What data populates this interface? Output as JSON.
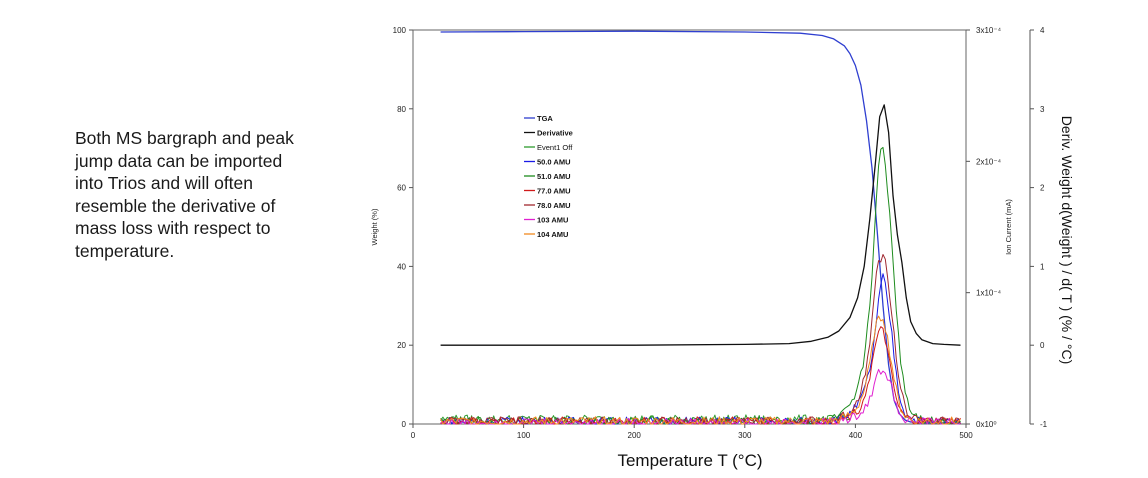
{
  "caption": {
    "lines": [
      "Both MS bargraph and peak",
      "jump data can be imported",
      "into Trios and will often",
      "resemble the derivative of",
      "mass loss with respect to",
      "temperature."
    ]
  },
  "chart_data": {
    "type": "line",
    "xlabel": "Temperature T (°C)",
    "xlim": [
      0,
      500
    ],
    "x_ticks": [
      "0",
      "100",
      "200",
      "300",
      "400",
      "500"
    ],
    "y_left": {
      "label": "Weight (%)",
      "lim": [
        0,
        100
      ],
      "ticks": [
        "0",
        "20",
        "40",
        "60",
        "80",
        "100"
      ]
    },
    "y_mid": {
      "label": "Ion Current (mA)",
      "lim": [
        0,
        0.0003
      ],
      "ticks": [
        "0x10⁰",
        "1x10⁻⁴",
        "2x10⁻⁴",
        "3x10⁻⁴"
      ]
    },
    "y_right": {
      "label": "Deriv. Weight d(Weight ) / d( T )  (% / °C)",
      "lim": [
        -1,
        4
      ],
      "ticks": [
        "-1",
        "0",
        "1",
        "2",
        "3",
        "4"
      ]
    },
    "legend_position": "upper-left inside plot",
    "series": [
      {
        "name": "TGA",
        "color": "#2f3fd0",
        "axis": "left",
        "x": [
          25,
          100,
          200,
          300,
          350,
          370,
          380,
          390,
          395,
          400,
          405,
          410,
          415,
          420,
          425,
          430,
          435,
          440,
          445,
          450,
          460,
          470,
          480,
          495
        ],
        "y": [
          99.5,
          99.6,
          99.7,
          99.5,
          99.2,
          98.6,
          97.8,
          96.0,
          94.0,
          91.0,
          86.0,
          77.0,
          65.0,
          48.0,
          30.0,
          15.0,
          6.0,
          2.5,
          1.0,
          0.5,
          0.3,
          0.3,
          0.3,
          0.3
        ]
      },
      {
        "name": "Derivative",
        "color": "#111111",
        "axis": "right",
        "x": [
          25,
          100,
          200,
          300,
          340,
          360,
          375,
          385,
          395,
          402,
          408,
          413,
          418,
          422,
          426,
          430,
          434,
          438,
          442,
          446,
          450,
          455,
          460,
          470,
          480,
          495
        ],
        "y": [
          0.0,
          0.0,
          0.0,
          0.01,
          0.02,
          0.05,
          0.1,
          0.18,
          0.35,
          0.6,
          1.0,
          1.6,
          2.3,
          2.9,
          3.05,
          2.7,
          1.9,
          1.4,
          1.05,
          0.6,
          0.3,
          0.15,
          0.07,
          0.02,
          0.01,
          0.0
        ]
      },
      {
        "name": "Event1 Off",
        "color": "#2e9a2e",
        "axis": "mid",
        "x": [
          25,
          100,
          200,
          300,
          380,
          390,
          395
        ],
        "y": [
          3.5e-06,
          3.5e-06,
          3.5e-06,
          3.5e-06,
          3.5e-06,
          3.5e-06,
          3.5e-06
        ]
      },
      {
        "name": "50.0 AMU",
        "color": "#1a1ae6",
        "axis": "mid",
        "x": [
          25,
          100,
          200,
          300,
          370,
          385,
          395,
          402,
          408,
          414,
          418,
          422,
          425,
          428,
          432,
          436,
          440,
          445,
          450,
          460,
          475,
          495
        ],
        "y": [
          2e-06,
          2e-06,
          2e-06,
          2e-06,
          2e-06,
          4e-06,
          8e-06,
          1.4e-05,
          2.5e-05,
          4.5e-05,
          7e-05,
          0.0001,
          0.000113,
          0.0001,
          7.5e-05,
          4.5e-05,
          2e-05,
          8e-06,
          4e-06,
          2e-06,
          2e-06,
          2e-06
        ]
      },
      {
        "name": "51.0 AMU",
        "color": "#1e8c1e",
        "axis": "mid",
        "x": [
          25,
          100,
          200,
          300,
          370,
          385,
          395,
          402,
          408,
          414,
          418,
          422,
          425,
          428,
          432,
          436,
          440,
          445,
          450,
          460,
          475,
          495
        ],
        "y": [
          2e-06,
          2e-06,
          2e-06,
          2e-06,
          2e-06,
          5e-06,
          1.2e-05,
          2.5e-05,
          5e-05,
          0.0001,
          0.00016,
          0.000205,
          0.00021,
          0.00019,
          0.00015,
          0.0001,
          5.5e-05,
          2.5e-05,
          1e-05,
          4e-06,
          2e-06,
          2e-06
        ]
      },
      {
        "name": "77.0 AMU",
        "color": "#d01a1a",
        "axis": "mid",
        "x": [
          25,
          100,
          200,
          300,
          370,
          385,
          395,
          402,
          408,
          414,
          418,
          422,
          425,
          428,
          432,
          436,
          440,
          445,
          450,
          460,
          475,
          495
        ],
        "y": [
          2e-06,
          2e-06,
          2e-06,
          2e-06,
          2e-06,
          3e-06,
          6e-06,
          1e-05,
          2e-05,
          4e-05,
          6e-05,
          7e-05,
          7.3e-05,
          6e-05,
          4e-05,
          2.2e-05,
          1e-05,
          5e-06,
          3e-06,
          2e-06,
          2e-06,
          2e-06
        ]
      },
      {
        "name": "78.0 AMU",
        "color": "#a02830",
        "axis": "mid",
        "x": [
          25,
          100,
          200,
          300,
          370,
          385,
          395,
          402,
          408,
          414,
          418,
          422,
          425,
          428,
          432,
          436,
          440,
          445,
          450,
          460,
          475,
          495
        ],
        "y": [
          2e-06,
          2e-06,
          2e-06,
          2e-06,
          2e-06,
          4e-06,
          9e-06,
          1.8e-05,
          3.5e-05,
          7e-05,
          0.00011,
          0.000125,
          0.00013,
          0.00012,
          9e-05,
          6e-05,
          3e-05,
          1.2e-05,
          5e-06,
          3e-06,
          2e-06,
          2e-06
        ]
      },
      {
        "name": "103 AMU",
        "color": "#e020d0",
        "axis": "mid",
        "x": [
          25,
          100,
          200,
          300,
          370,
          385,
          395,
          402,
          408,
          414,
          418,
          422,
          425,
          428,
          432,
          436,
          440,
          445,
          450,
          460,
          475,
          495
        ],
        "y": [
          1e-06,
          1e-06,
          1e-06,
          1e-06,
          1e-06,
          2e-06,
          4e-06,
          7e-06,
          1.2e-05,
          2e-05,
          3.3e-05,
          4e-05,
          4.2e-05,
          3.8e-05,
          3e-05,
          1.8e-05,
          9e-06,
          4e-06,
          2e-06,
          1e-06,
          1e-06,
          1e-06
        ]
      },
      {
        "name": "104 AMU",
        "color": "#f08a20",
        "axis": "mid",
        "x": [
          25,
          100,
          200,
          300,
          370,
          385,
          395,
          402,
          408,
          414,
          418,
          422,
          425,
          428,
          432,
          436,
          440,
          445,
          450,
          460,
          475,
          495
        ],
        "y": [
          2e-06,
          2e-06,
          2e-06,
          2e-06,
          2e-06,
          3e-06,
          7e-06,
          1.3e-05,
          2.5e-05,
          5e-05,
          7.5e-05,
          8e-05,
          8.2e-05,
          7e-05,
          5e-05,
          3e-05,
          1.4e-05,
          6e-06,
          3e-06,
          2e-06,
          2e-06,
          2e-06
        ]
      }
    ]
  }
}
